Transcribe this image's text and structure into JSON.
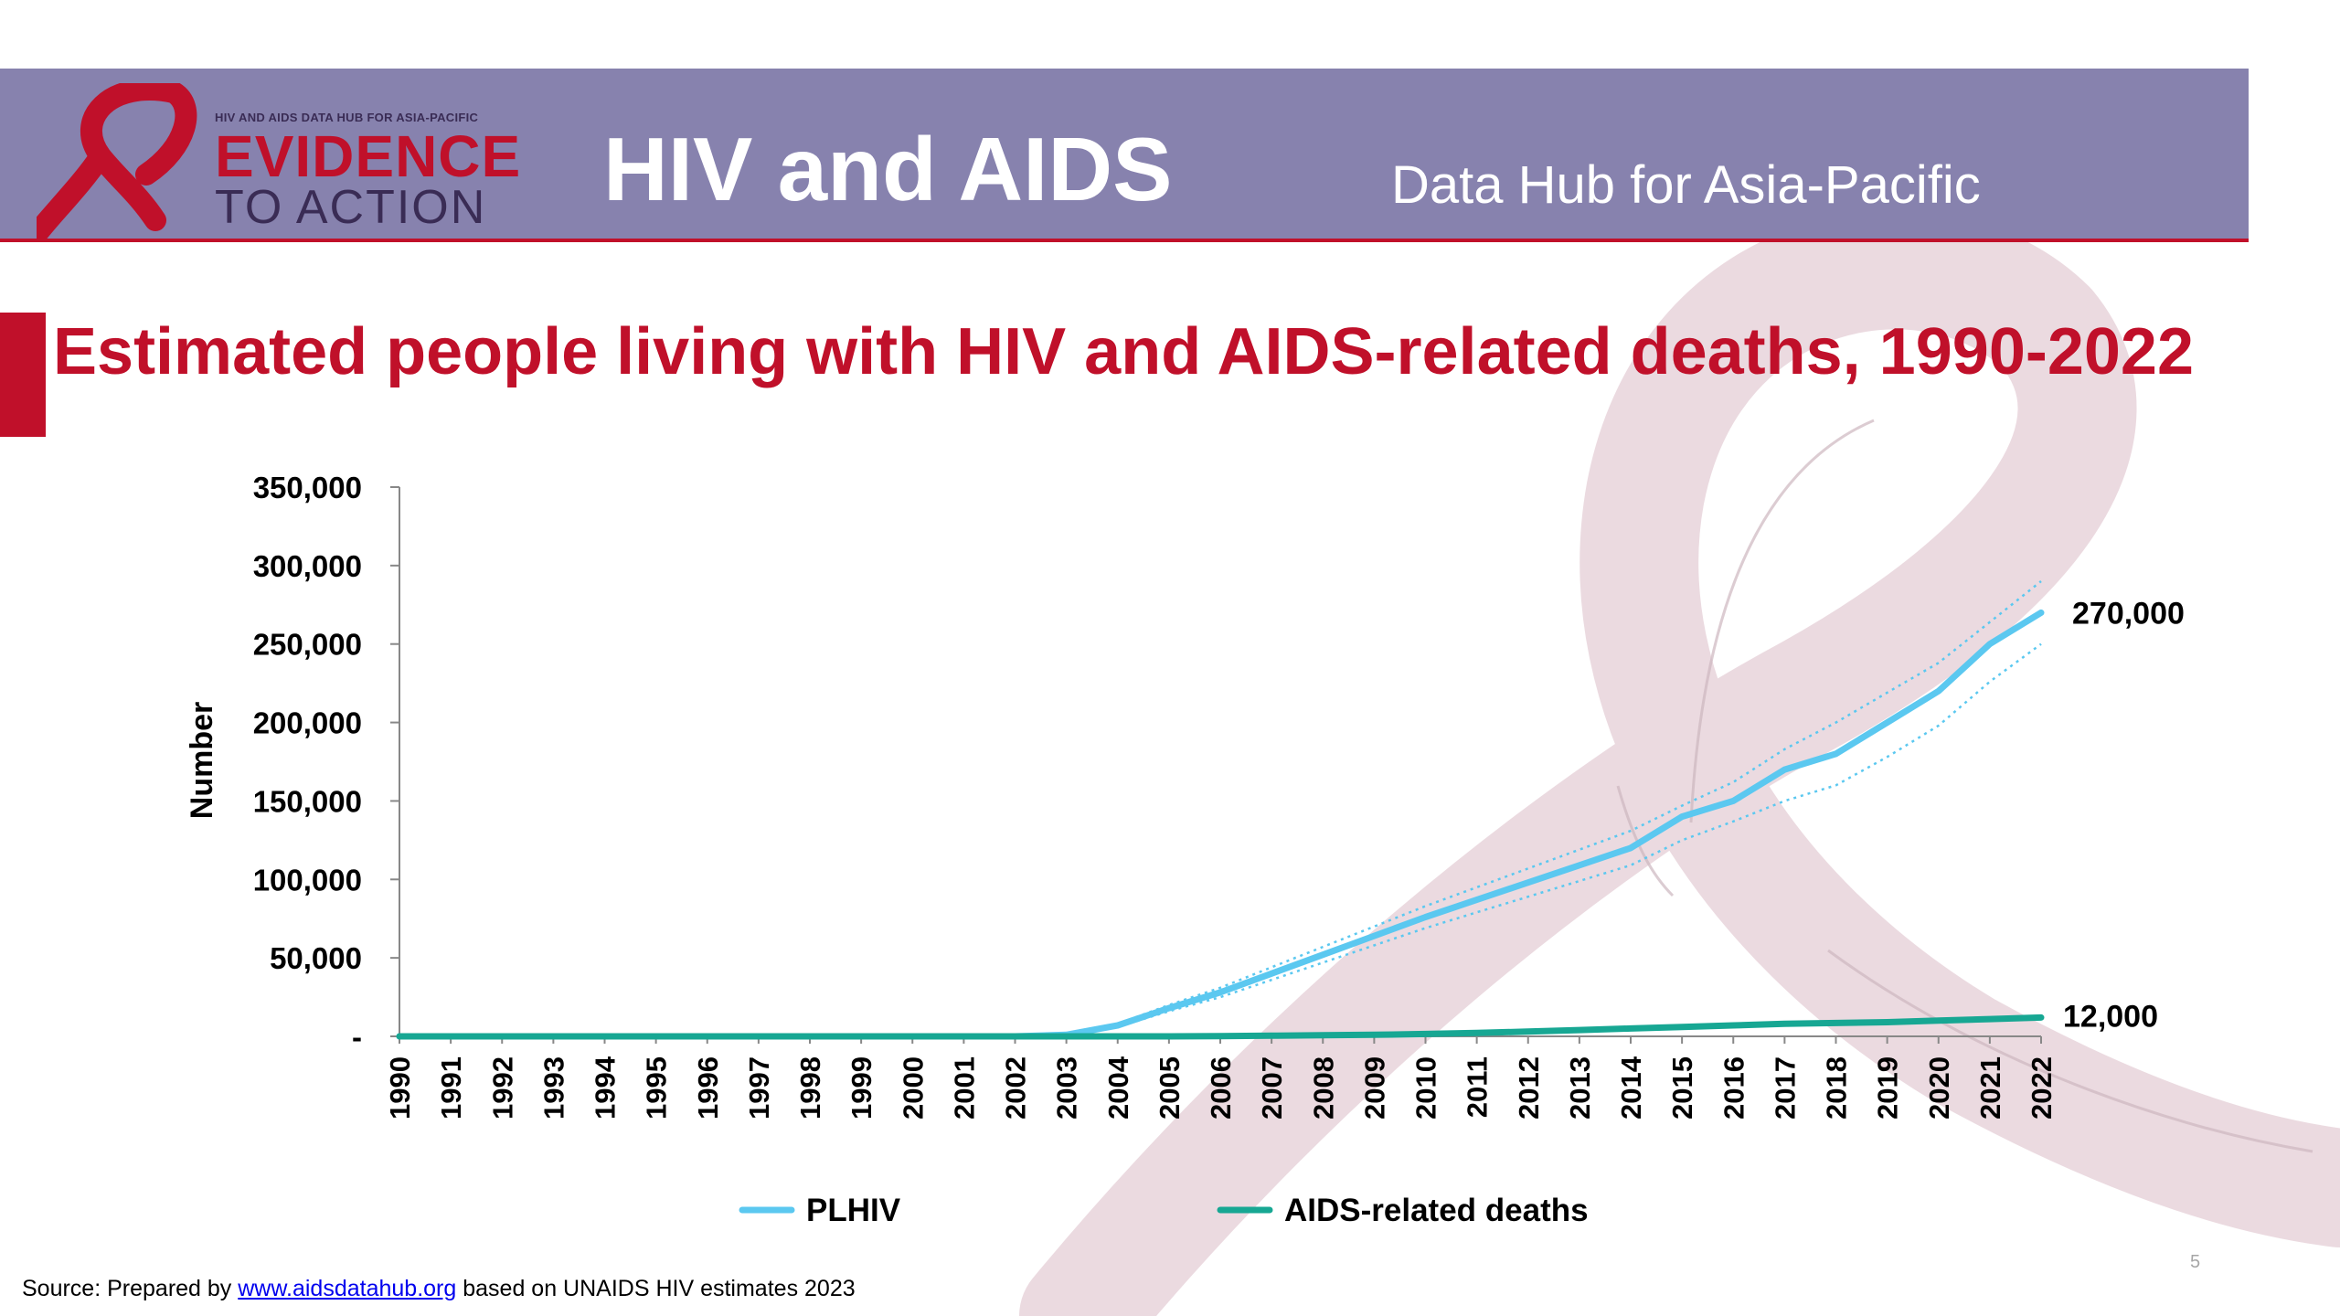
{
  "header": {
    "logo_small_text": "HIV AND AIDS DATA HUB FOR ASIA-PACIFIC",
    "logo_line1": "EVIDENCE",
    "logo_line2": "TO ACTION",
    "title": "HIV and AIDS",
    "subtitle": "Data Hub for Asia-Pacific"
  },
  "slide": {
    "title": "Estimated people living with HIV and AIDS-related deaths, 1990-2022",
    "page_number": "5"
  },
  "source": {
    "prefix": "Source: Prepared by ",
    "link_text": "www.aidsdatahub.org",
    "suffix": "  based on UNAIDS HIV estimates 2023"
  },
  "colors": {
    "banner": "#8782ae",
    "accent_red": "#c0102a",
    "plhiv": "#5bc8f0",
    "deaths": "#17a793",
    "ribbon": "#e8d4da"
  },
  "chart_data": {
    "type": "line",
    "title": "Estimated people living with HIV and AIDS-related deaths, 1990-2022",
    "xlabel": "",
    "ylabel": "Number",
    "ylim": [
      0,
      350000
    ],
    "yticks": [
      0,
      50000,
      100000,
      150000,
      200000,
      250000,
      300000,
      350000
    ],
    "ytick_labels": [
      "-",
      "50,000",
      "100,000",
      "150,000",
      "200,000",
      "250,000",
      "300,000",
      "350,000"
    ],
    "x": [
      "1990",
      "1991",
      "1992",
      "1993",
      "1994",
      "1995",
      "1996",
      "1997",
      "1998",
      "1999",
      "2000",
      "2001",
      "2002",
      "2003",
      "2004",
      "2005",
      "2006",
      "2007",
      "2008",
      "2009",
      "2010",
      "2011",
      "2012",
      "2013",
      "2014",
      "2015",
      "2016",
      "2017",
      "2018",
      "2019",
      "2020",
      "2021",
      "2022"
    ],
    "legend_position": "bottom",
    "grid": false,
    "series": [
      {
        "name": "PLHIV",
        "color": "#5bc8f0",
        "values": [
          0,
          0,
          0,
          0,
          0,
          0,
          0,
          0,
          0,
          0,
          0,
          0,
          0,
          1000,
          7000,
          18000,
          28000,
          40000,
          52000,
          64000,
          76000,
          87000,
          98000,
          109000,
          120000,
          140000,
          150000,
          170000,
          180000,
          200000,
          220000,
          250000,
          270000
        ],
        "upper": [
          0,
          0,
          0,
          0,
          0,
          0,
          0,
          0,
          0,
          0,
          0,
          0,
          0,
          1200,
          8000,
          20000,
          31000,
          44000,
          57000,
          70000,
          83000,
          95000,
          107000,
          119000,
          131000,
          147000,
          162000,
          183000,
          200000,
          219000,
          238000,
          264000,
          290000
        ],
        "lower": [
          0,
          0,
          0,
          0,
          0,
          0,
          0,
          0,
          0,
          0,
          0,
          0,
          0,
          800,
          6000,
          16000,
          25000,
          36000,
          47000,
          58000,
          69000,
          79000,
          89000,
          99000,
          109000,
          125000,
          137000,
          150000,
          160000,
          178000,
          198000,
          226000,
          250000
        ],
        "end_label": "270,000"
      },
      {
        "name": "AIDS-related deaths",
        "color": "#17a793",
        "values": [
          0,
          0,
          0,
          0,
          0,
          0,
          0,
          0,
          0,
          0,
          0,
          0,
          0,
          0,
          0,
          0,
          200,
          400,
          700,
          1000,
          1500,
          2200,
          3000,
          4000,
          5000,
          6000,
          7000,
          8000,
          8500,
          9000,
          10000,
          11000,
          12000
        ],
        "end_label": "12,000"
      }
    ]
  }
}
